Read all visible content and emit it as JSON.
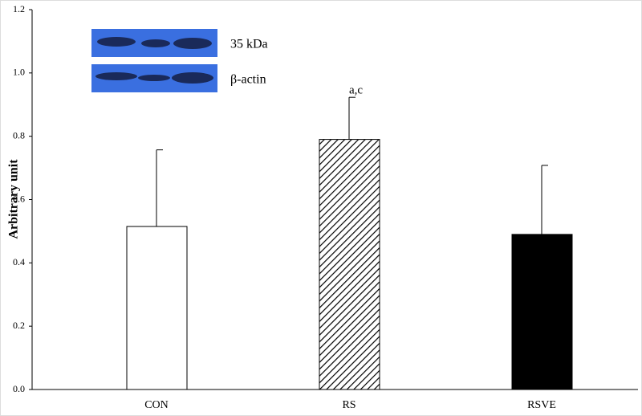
{
  "chart_data": {
    "type": "bar",
    "ylabel": "Arbitrary unit",
    "categories": [
      "CON",
      "RS",
      "RSVE"
    ],
    "values": [
      0.515,
      0.79,
      0.49
    ],
    "errors": [
      0.242,
      0.133,
      0.218
    ],
    "fills": [
      "#ffffff",
      "hatch",
      "#000000"
    ],
    "annotations": [
      {
        "category": 1,
        "text": "a,c"
      }
    ],
    "blot_labels": [
      "35 kDa",
      "β-actin"
    ],
    "ylim": [
      0,
      1.2
    ],
    "yticks": [
      {
        "value": 0,
        "label": "0.0"
      },
      0.2,
      0.4,
      0.6,
      0.8,
      {
        "value": 1,
        "label": "1.0"
      },
      1.2
    ],
    "grid": false
  }
}
